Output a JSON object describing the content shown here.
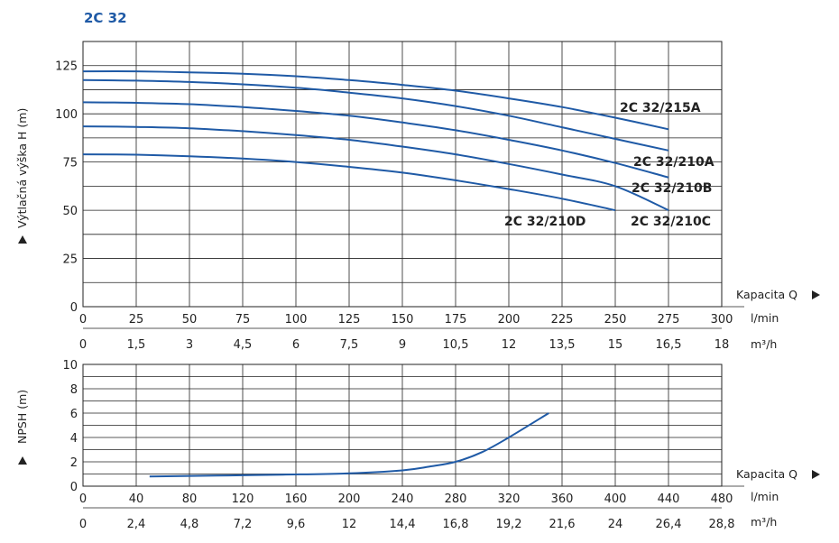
{
  "chart_data": [
    {
      "type": "line",
      "title": "2C 32",
      "ylabel": "Výtlačná výška H (m)",
      "xlabel": "Kapacita Q",
      "x_unit_primary": "l/min",
      "x_unit_secondary": "m³/h",
      "xlim": [
        0,
        300
      ],
      "ylim": [
        0,
        137.5
      ],
      "yticks": [
        "0",
        "25",
        "50",
        "75",
        "100",
        "125"
      ],
      "xticks_primary": [
        "0",
        "25",
        "50",
        "75",
        "100",
        "125",
        "150",
        "175",
        "200",
        "225",
        "250",
        "275",
        "300"
      ],
      "xticks_secondary": [
        "0",
        "1,5",
        "3",
        "4,5",
        "6",
        "7,5",
        "9",
        "10,5",
        "12",
        "13,5",
        "15",
        "16,5",
        "18"
      ],
      "grid": true,
      "series": [
        {
          "name": "2C 32/215A",
          "x": [
            0,
            25,
            50,
            75,
            100,
            125,
            150,
            175,
            200,
            225,
            250,
            275
          ],
          "y": [
            122,
            122,
            121.5,
            120.8,
            119.5,
            117.5,
            115,
            112,
            108,
            103.5,
            98,
            92
          ]
        },
        {
          "name": "2C 32/210A",
          "x": [
            0,
            25,
            50,
            75,
            100,
            125,
            150,
            175,
            200,
            225,
            250,
            275
          ],
          "y": [
            117.5,
            117.2,
            116.5,
            115.3,
            113.5,
            111,
            108,
            104,
            99,
            93,
            87,
            81
          ]
        },
        {
          "name": "2C 32/210B",
          "x": [
            0,
            25,
            50,
            75,
            100,
            125,
            150,
            175,
            200,
            225,
            250,
            275
          ],
          "y": [
            106,
            105.7,
            105,
            103.5,
            101.5,
            99,
            95.5,
            91.5,
            86.5,
            81,
            74.5,
            67
          ]
        },
        {
          "name": "2C 32/210C",
          "x": [
            0,
            25,
            50,
            75,
            100,
            125,
            150,
            175,
            200,
            225,
            250,
            275
          ],
          "y": [
            93.5,
            93.2,
            92.5,
            91,
            89,
            86.5,
            83,
            79,
            74,
            68.5,
            62.5,
            50
          ]
        },
        {
          "name": "2C 32/210D",
          "x": [
            0,
            25,
            50,
            75,
            100,
            125,
            150,
            175,
            200,
            225,
            250
          ],
          "y": [
            79,
            78.8,
            78,
            76.8,
            75,
            72.5,
            69.5,
            65.5,
            61,
            56,
            50
          ]
        }
      ]
    },
    {
      "type": "line",
      "ylabel": "NPSH (m)",
      "xlabel": "Kapacita Q",
      "x_unit_primary": "l/min",
      "x_unit_secondary": "m³/h",
      "xlim": [
        0,
        480
      ],
      "ylim": [
        0,
        10
      ],
      "yticks": [
        "0",
        "2",
        "4",
        "6",
        "8",
        "10"
      ],
      "xticks_primary": [
        "0",
        "40",
        "80",
        "120",
        "160",
        "200",
        "240",
        "280",
        "320",
        "360",
        "400",
        "440",
        "480"
      ],
      "xticks_secondary": [
        "0",
        "2,4",
        "4,8",
        "7,2",
        "9,6",
        "12",
        "14,4",
        "16,8",
        "19,2",
        "21,6",
        "24",
        "26,4",
        "28,8"
      ],
      "grid": true,
      "series": [
        {
          "name": "NPSH",
          "x": [
            50,
            100,
            150,
            200,
            240,
            260,
            280,
            300,
            320,
            350
          ],
          "y": [
            0.8,
            0.87,
            0.95,
            1.05,
            1.3,
            1.6,
            2.0,
            2.8,
            4.0,
            6.0
          ]
        }
      ]
    }
  ]
}
